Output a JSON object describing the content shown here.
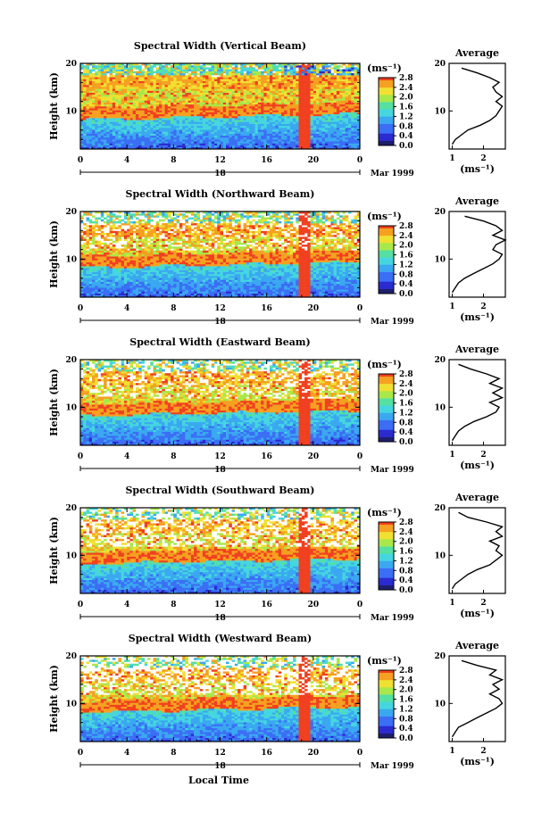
{
  "figure": {
    "x_axis_title": "Local Time",
    "date_label": "Mar 1999",
    "day_label": "18",
    "height_axis_title": "Height (km)",
    "unit_label": "(ms⁻¹)",
    "average_title": "Average",
    "average_unit": "(ms⁻¹)"
  },
  "chart_data": [
    {
      "type": "heatmap",
      "title": "Spectral Width (Vertical Beam)",
      "ylabel": "Height (km)",
      "xlabel": "Local Time",
      "x_ticks": [
        "0",
        "4",
        "8",
        "12",
        "16",
        "20",
        "0"
      ],
      "y_ticks": [
        "10",
        "20"
      ],
      "xlim_hours": [
        0,
        24
      ],
      "ylim_km": [
        2,
        20
      ],
      "colorbar": {
        "label": "(ms⁻¹)",
        "ticks": [
          "2.8",
          "2.4",
          "2.0",
          "1.6",
          "1.2",
          "0.8",
          "0.4",
          "0.0"
        ],
        "range": [
          0,
          2.8
        ]
      },
      "average_profile": {
        "title": "Average",
        "xlabel": "(ms⁻¹)",
        "x_ticks": [
          "1",
          "2"
        ],
        "y_ticks": [
          "10",
          "20"
        ],
        "height_km": [
          3,
          4,
          5,
          6,
          7,
          8,
          9,
          10,
          11,
          12,
          13,
          14,
          15,
          16,
          17,
          18,
          19
        ],
        "width_ms": [
          1.0,
          1.1,
          1.3,
          1.5,
          1.9,
          2.2,
          2.4,
          2.5,
          2.6,
          2.4,
          2.6,
          2.4,
          2.3,
          2.5,
          2.2,
          1.8,
          1.3
        ]
      }
    },
    {
      "type": "heatmap",
      "title": "Spectral Width (Northward Beam)",
      "ylabel": "Height (km)",
      "xlabel": "Local Time",
      "x_ticks": [
        "0",
        "4",
        "8",
        "12",
        "16",
        "20",
        "0"
      ],
      "y_ticks": [
        "10",
        "20"
      ],
      "xlim_hours": [
        0,
        24
      ],
      "ylim_km": [
        2,
        20
      ],
      "colorbar": {
        "label": "(ms⁻¹)",
        "ticks": [
          "2.8",
          "2.4",
          "2.0",
          "1.6",
          "1.2",
          "0.8",
          "0.4",
          "0.0"
        ],
        "range": [
          0,
          2.8
        ]
      },
      "average_profile": {
        "title": "Average",
        "xlabel": "(ms⁻¹)",
        "x_ticks": [
          "1",
          "2"
        ],
        "y_ticks": [
          "10",
          "20"
        ],
        "height_km": [
          3,
          4,
          5,
          6,
          7,
          8,
          9,
          10,
          11,
          12,
          13,
          14,
          15,
          16,
          17,
          18,
          19
        ],
        "width_ms": [
          1.0,
          1.1,
          1.2,
          1.4,
          1.7,
          2.0,
          2.3,
          2.5,
          2.6,
          2.3,
          2.4,
          2.7,
          2.3,
          2.6,
          2.4,
          2.0,
          1.4
        ]
      }
    },
    {
      "type": "heatmap",
      "title": "Spectral Width (Eastward Beam)",
      "ylabel": "Height (km)",
      "xlabel": "Local Time",
      "x_ticks": [
        "0",
        "4",
        "8",
        "12",
        "16",
        "20",
        "0"
      ],
      "y_ticks": [
        "10",
        "20"
      ],
      "xlim_hours": [
        0,
        24
      ],
      "ylim_km": [
        2,
        20
      ],
      "colorbar": {
        "label": "(ms⁻¹)",
        "ticks": [
          "2.8",
          "2.4",
          "2.0",
          "1.6",
          "1.2",
          "0.8",
          "0.4",
          "0.0"
        ],
        "range": [
          0,
          2.8
        ]
      },
      "average_profile": {
        "title": "Average",
        "xlabel": "(ms⁻¹)",
        "x_ticks": [
          "1",
          "2"
        ],
        "y_ticks": [
          "10",
          "20"
        ],
        "height_km": [
          3,
          4,
          5,
          6,
          7,
          8,
          9,
          10,
          11,
          12,
          13,
          14,
          15,
          16,
          17,
          18,
          19
        ],
        "width_ms": [
          1.0,
          1.1,
          1.2,
          1.4,
          1.7,
          2.1,
          2.4,
          2.5,
          2.2,
          2.6,
          2.3,
          2.6,
          2.2,
          2.5,
          2.1,
          1.6,
          1.2
        ]
      }
    },
    {
      "type": "heatmap",
      "title": "Spectral Width (Southward Beam)",
      "ylabel": "Height (km)",
      "xlabel": "Local Time",
      "x_ticks": [
        "0",
        "4",
        "8",
        "12",
        "16",
        "20",
        "0"
      ],
      "y_ticks": [
        "10",
        "20"
      ],
      "xlim_hours": [
        0,
        24
      ],
      "ylim_km": [
        2,
        20
      ],
      "colorbar": {
        "label": "(ms⁻¹)",
        "ticks": [
          "2.8",
          "2.4",
          "2.0",
          "1.6",
          "1.2",
          "0.8",
          "0.4",
          "0.0"
        ],
        "range": [
          0,
          2.8
        ]
      },
      "average_profile": {
        "title": "Average",
        "xlabel": "(ms⁻¹)",
        "x_ticks": [
          "1",
          "2"
        ],
        "y_ticks": [
          "10",
          "20"
        ],
        "height_km": [
          3,
          4,
          5,
          6,
          7,
          8,
          9,
          10,
          11,
          12,
          13,
          14,
          15,
          16,
          17,
          18,
          19
        ],
        "width_ms": [
          1.0,
          1.1,
          1.3,
          1.5,
          1.8,
          2.2,
          2.4,
          2.6,
          2.4,
          2.5,
          2.2,
          2.6,
          2.4,
          2.6,
          2.1,
          1.5,
          1.2
        ]
      }
    },
    {
      "type": "heatmap",
      "title": "Spectral Width (Westward Beam)",
      "ylabel": "Height (km)",
      "xlabel": "Local Time",
      "x_ticks": [
        "0",
        "4",
        "8",
        "12",
        "16",
        "20",
        "0"
      ],
      "y_ticks": [
        "10",
        "20"
      ],
      "xlim_hours": [
        0,
        24
      ],
      "ylim_km": [
        2,
        20
      ],
      "colorbar": {
        "label": "(ms⁻¹)",
        "ticks": [
          "2.8",
          "2.4",
          "2.0",
          "1.6",
          "1.2",
          "0.8",
          "0.4",
          "0.0"
        ],
        "range": [
          0,
          2.8
        ]
      },
      "average_profile": {
        "title": "Average",
        "xlabel": "(ms⁻¹)",
        "x_ticks": [
          "1",
          "2"
        ],
        "y_ticks": [
          "10",
          "20"
        ],
        "height_km": [
          3,
          4,
          5,
          6,
          7,
          8,
          9,
          10,
          11,
          12,
          13,
          14,
          15,
          16,
          17,
          18,
          19
        ],
        "width_ms": [
          1.0,
          1.1,
          1.2,
          1.5,
          1.8,
          2.1,
          2.4,
          2.6,
          2.5,
          2.2,
          2.5,
          2.3,
          2.6,
          2.2,
          2.4,
          1.8,
          1.3
        ]
      }
    }
  ]
}
